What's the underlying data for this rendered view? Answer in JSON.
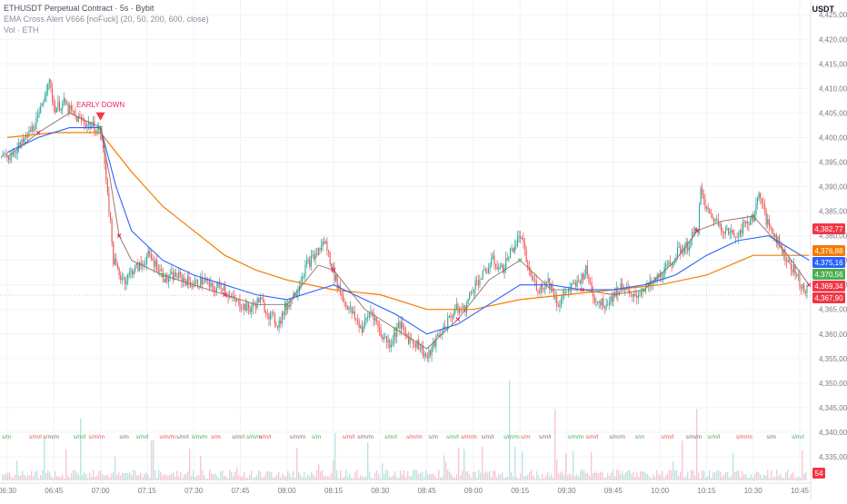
{
  "legend": {
    "symbol": "ETHUSDT Perpetual Contract · 5s · Bybit",
    "indicator1": "EMA Cross Alert V666 [noFuck] (20, 50, 200, 600, close)",
    "indicator2": "Vol · ETH"
  },
  "axis": {
    "currency": "USDT"
  },
  "annotation": {
    "label": "EARLY DOWN",
    "x": "07:00"
  },
  "colors": {
    "up": "#26a69a",
    "down": "#ef5350",
    "ema_fast": "#4caf50",
    "ema_mid": "#2962ff",
    "ema_slow": "#f57c00",
    "grid": "#f0f3fa",
    "text": "#787b86",
    "ema_red": "#e91e63"
  },
  "price_tags": [
    {
      "value": "4,382,77",
      "color": "#f23645"
    },
    {
      "value": "4,376,88",
      "color": "#f57c00"
    },
    {
      "value": "4,375,16",
      "color": "#2962ff"
    },
    {
      "value": "4,370,56",
      "color": "#4caf50"
    },
    {
      "value": "4,369,34",
      "color": "#f23645"
    },
    {
      "value": "4,367,90",
      "color": "#f23645"
    }
  ],
  "volume_tag": {
    "value": "54",
    "color": "#f23645"
  },
  "signal_labels": [
    "s/m",
    "s/m/l",
    "s/m/m",
    "s/m/l",
    "s/m/m"
  ],
  "chart_data": {
    "type": "line",
    "series_names": [
      "price",
      "ema_20",
      "ema_50",
      "ema_200"
    ],
    "yticks": [
      4335,
      4340,
      4345,
      4350,
      4355,
      4360,
      4365,
      4370,
      4375,
      4380,
      4385,
      4390,
      4395,
      4400,
      4405,
      4410,
      4415,
      4420,
      4425
    ],
    "ytick_labels": [
      "4,335,00",
      "4,340,00",
      "4,345,00",
      "4,350,00",
      "4,355,00",
      "4,360,00",
      "4,365,00",
      "4,370,00",
      "4,375,00",
      "4,380,00",
      "4,385,00",
      "4,390,00",
      "4,395,00",
      "4,400,00",
      "4,405,00",
      "4,410,00",
      "4,415,00",
      "4,420,00",
      "4,425,00"
    ],
    "xticks": [
      "06:30",
      "06:45",
      "07:00",
      "07:15",
      "07:30",
      "07:45",
      "08:00",
      "08:15",
      "08:30",
      "08:45",
      "09:00",
      "09:15",
      "09:30",
      "09:45",
      "10:00",
      "10:15",
      "10:30",
      "10:45"
    ],
    "ylim": [
      4330,
      4428
    ],
    "price_points": [
      [
        "06:30",
        4396
      ],
      [
        "06:35",
        4399
      ],
      [
        "06:40",
        4404
      ],
      [
        "06:43",
        4412
      ],
      [
        "06:45",
        4406
      ],
      [
        "06:48",
        4407
      ],
      [
        "06:52",
        4404
      ],
      [
        "06:55",
        4403
      ],
      [
        "06:58",
        4402
      ],
      [
        "07:00",
        4401
      ],
      [
        "07:02",
        4390
      ],
      [
        "07:04",
        4375
      ],
      [
        "07:06",
        4372
      ],
      [
        "07:08",
        4371
      ],
      [
        "07:10",
        4373
      ],
      [
        "07:13",
        4374
      ],
      [
        "07:15",
        4376
      ],
      [
        "07:18",
        4374
      ],
      [
        "07:21",
        4371
      ],
      [
        "07:24",
        4372
      ],
      [
        "07:27",
        4371
      ],
      [
        "07:30",
        4370
      ],
      [
        "07:33",
        4371
      ],
      [
        "07:36",
        4369
      ],
      [
        "07:39",
        4370
      ],
      [
        "07:42",
        4367
      ],
      [
        "07:45",
        4366
      ],
      [
        "07:48",
        4365
      ],
      [
        "07:51",
        4367
      ],
      [
        "07:54",
        4364
      ],
      [
        "07:57",
        4362
      ],
      [
        "08:00",
        4366
      ],
      [
        "08:03",
        4369
      ],
      [
        "08:06",
        4374
      ],
      [
        "08:09",
        4376
      ],
      [
        "08:12",
        4379
      ],
      [
        "08:15",
        4372
      ],
      [
        "08:18",
        4367
      ],
      [
        "08:21",
        4364
      ],
      [
        "08:24",
        4361
      ],
      [
        "08:27",
        4365
      ],
      [
        "08:30",
        4360
      ],
      [
        "08:33",
        4358
      ],
      [
        "08:36",
        4362
      ],
      [
        "08:39",
        4359
      ],
      [
        "08:42",
        4358
      ],
      [
        "08:45",
        4355
      ],
      [
        "08:48",
        4359
      ],
      [
        "08:51",
        4362
      ],
      [
        "08:54",
        4365
      ],
      [
        "08:57",
        4365
      ],
      [
        "09:00",
        4370
      ],
      [
        "09:03",
        4372
      ],
      [
        "09:06",
        4375
      ],
      [
        "09:09",
        4373
      ],
      [
        "09:12",
        4377
      ],
      [
        "09:15",
        4380
      ],
      [
        "09:18",
        4372
      ],
      [
        "09:21",
        4369
      ],
      [
        "09:24",
        4371
      ],
      [
        "09:27",
        4366
      ],
      [
        "09:30",
        4369
      ],
      [
        "09:33",
        4370
      ],
      [
        "09:36",
        4373
      ],
      [
        "09:39",
        4367
      ],
      [
        "09:42",
        4366
      ],
      [
        "09:45",
        4368
      ],
      [
        "09:48",
        4370
      ],
      [
        "09:51",
        4367
      ],
      [
        "09:54",
        4369
      ],
      [
        "09:57",
        4370
      ],
      [
        "10:00",
        4372
      ],
      [
        "10:03",
        4374
      ],
      [
        "10:06",
        4377
      ],
      [
        "10:09",
        4378
      ],
      [
        "10:12",
        4382
      ],
      [
        "10:13",
        4389
      ],
      [
        "10:15",
        4385
      ],
      [
        "10:18",
        4383
      ],
      [
        "10:21",
        4381
      ],
      [
        "10:24",
        4380
      ],
      [
        "10:27",
        4382
      ],
      [
        "10:30",
        4384
      ],
      [
        "10:32",
        4389
      ],
      [
        "10:34",
        4383
      ],
      [
        "10:37",
        4380
      ],
      [
        "10:40",
        4376
      ],
      [
        "10:43",
        4373
      ],
      [
        "10:46",
        4369
      ],
      [
        "10:48",
        4368
      ]
    ],
    "ema_20": [
      [
        "06:30",
        4396
      ],
      [
        "06:40",
        4401
      ],
      [
        "06:50",
        4405
      ],
      [
        "07:00",
        4402
      ],
      [
        "07:03",
        4392
      ],
      [
        "07:06",
        4380
      ],
      [
        "07:10",
        4375
      ],
      [
        "07:20",
        4372
      ],
      [
        "07:30",
        4370
      ],
      [
        "07:40",
        4368
      ],
      [
        "07:50",
        4366
      ],
      [
        "08:00",
        4366
      ],
      [
        "08:10",
        4374
      ],
      [
        "08:15",
        4373
      ],
      [
        "08:25",
        4365
      ],
      [
        "08:35",
        4361
      ],
      [
        "08:45",
        4357
      ],
      [
        "08:55",
        4363
      ],
      [
        "09:05",
        4371
      ],
      [
        "09:15",
        4375
      ],
      [
        "09:25",
        4369
      ],
      [
        "09:35",
        4369
      ],
      [
        "09:45",
        4368
      ],
      [
        "09:55",
        4369
      ],
      [
        "10:05",
        4375
      ],
      [
        "10:12",
        4381
      ],
      [
        "10:20",
        4383
      ],
      [
        "10:30",
        4384
      ],
      [
        "10:40",
        4377
      ],
      [
        "10:48",
        4370
      ]
    ],
    "ema_50": [
      [
        "06:30",
        4397
      ],
      [
        "06:40",
        4400
      ],
      [
        "06:50",
        4402
      ],
      [
        "07:00",
        4402
      ],
      [
        "07:05",
        4390
      ],
      [
        "07:10",
        4381
      ],
      [
        "07:20",
        4375
      ],
      [
        "07:30",
        4372
      ],
      [
        "07:40",
        4370
      ],
      [
        "07:50",
        4368
      ],
      [
        "08:00",
        4367
      ],
      [
        "08:10",
        4369
      ],
      [
        "08:15",
        4370
      ],
      [
        "08:25",
        4367
      ],
      [
        "08:35",
        4364
      ],
      [
        "08:45",
        4360
      ],
      [
        "08:55",
        4362
      ],
      [
        "09:05",
        4366
      ],
      [
        "09:15",
        4370
      ],
      [
        "09:25",
        4370
      ],
      [
        "09:35",
        4369
      ],
      [
        "09:45",
        4369
      ],
      [
        "09:55",
        4370
      ],
      [
        "10:05",
        4372
      ],
      [
        "10:15",
        4376
      ],
      [
        "10:25",
        4379
      ],
      [
        "10:35",
        4380
      ],
      [
        "10:48",
        4375
      ]
    ],
    "ema_200": [
      [
        "06:30",
        4400
      ],
      [
        "06:45",
        4401
      ],
      [
        "07:00",
        4401
      ],
      [
        "07:10",
        4393
      ],
      [
        "07:20",
        4386
      ],
      [
        "07:30",
        4381
      ],
      [
        "07:40",
        4376
      ],
      [
        "07:50",
        4373
      ],
      [
        "08:00",
        4371
      ],
      [
        "08:15",
        4369
      ],
      [
        "08:30",
        4368
      ],
      [
        "08:45",
        4365
      ],
      [
        "09:00",
        4365
      ],
      [
        "09:15",
        4367
      ],
      [
        "09:30",
        4368
      ],
      [
        "09:45",
        4369
      ],
      [
        "10:00",
        4370
      ],
      [
        "10:15",
        4372
      ],
      [
        "10:30",
        4376
      ],
      [
        "10:48",
        4376
      ]
    ],
    "volume_note": "volume bars"
  }
}
